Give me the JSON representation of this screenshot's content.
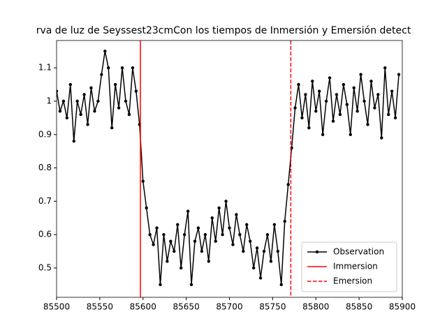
{
  "chart_data": {
    "type": "line",
    "title": "rva de luz de Seyssest23cmCon los tiempos de Inmersión y Emersión detect",
    "x": [
      85500,
      85504,
      85508,
      85512,
      85516,
      85520,
      85524,
      85528,
      85532,
      85536,
      85540,
      85544,
      85548,
      85552,
      85556,
      85560,
      85564,
      85568,
      85572,
      85576,
      85580,
      85584,
      85588,
      85592,
      85596,
      85600,
      85604,
      85608,
      85612,
      85616,
      85620,
      85624,
      85628,
      85632,
      85636,
      85640,
      85644,
      85648,
      85652,
      85656,
      85660,
      85664,
      85668,
      85672,
      85676,
      85680,
      85684,
      85688,
      85692,
      85696,
      85700,
      85704,
      85708,
      85712,
      85716,
      85720,
      85724,
      85728,
      85732,
      85736,
      85740,
      85744,
      85748,
      85752,
      85756,
      85760,
      85764,
      85768,
      85772,
      85776,
      85780,
      85784,
      85788,
      85792,
      85796,
      85800,
      85804,
      85808,
      85812,
      85816,
      85820,
      85824,
      85828,
      85832,
      85836,
      85840,
      85844,
      85848,
      85852,
      85856,
      85860,
      85864,
      85868,
      85872,
      85876,
      85880,
      85884,
      85888,
      85892,
      85896
    ],
    "series": [
      {
        "name": "Observation",
        "color": "#000000",
        "values": [
          1.03,
          0.97,
          1.0,
          0.95,
          1.05,
          0.88,
          1.0,
          0.96,
          1.02,
          0.93,
          1.04,
          0.97,
          1.0,
          1.08,
          1.15,
          1.1,
          0.92,
          1.05,
          0.98,
          1.1,
          1.0,
          0.96,
          1.1,
          1.03,
          0.93,
          0.76,
          0.68,
          0.6,
          0.57,
          0.62,
          0.45,
          0.6,
          0.52,
          0.58,
          0.55,
          0.63,
          0.5,
          0.6,
          0.67,
          0.45,
          0.58,
          0.62,
          0.55,
          0.6,
          0.52,
          0.65,
          0.58,
          0.68,
          0.6,
          0.7,
          0.62,
          0.57,
          0.66,
          0.6,
          0.55,
          0.63,
          0.58,
          0.5,
          0.56,
          0.47,
          0.55,
          0.6,
          0.52,
          0.63,
          0.55,
          0.45,
          0.64,
          0.75,
          0.86,
          0.98,
          1.05,
          0.95,
          1.02,
          0.92,
          1.06,
          0.97,
          1.03,
          0.9,
          1.0,
          1.07,
          0.94,
          1.02,
          0.96,
          1.05,
          0.99,
          0.9,
          1.04,
          0.97,
          1.08,
          1.0,
          0.93,
          1.06,
          0.98,
          1.02,
          0.89,
          1.1,
          0.96,
          1.03,
          0.95,
          1.08
        ]
      }
    ],
    "vlines": [
      {
        "name": "Immersion",
        "x": 85597,
        "color": "#ff0000",
        "dash": false
      },
      {
        "name": "Emersion",
        "x": 85771,
        "color": "#ff0000",
        "dash": true
      }
    ],
    "xlim": [
      85500,
      85900
    ],
    "xticks": [
      85500,
      85550,
      85600,
      85650,
      85700,
      85750,
      85800,
      85850,
      85900
    ],
    "ylim": [
      0.412,
      1.182
    ],
    "yticks": [
      0.5,
      0.6,
      0.7,
      0.8,
      0.9,
      1.0,
      1.1
    ],
    "legend": "lower right"
  }
}
